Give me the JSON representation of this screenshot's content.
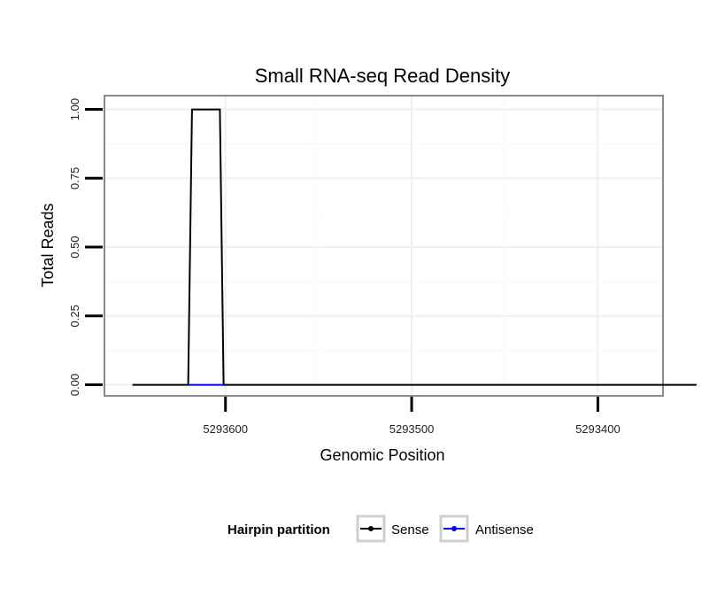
{
  "chart_data": {
    "type": "line",
    "title": "Small RNA-seq Read Density",
    "xlabel": "Genomic Position",
    "ylabel": "Total Reads",
    "x_reversed": true,
    "xlim": [
      5293665,
      5293365
    ],
    "ylim": [
      -0.04,
      1.05
    ],
    "x_ticks": [
      5293600,
      5293500,
      5293400
    ],
    "x_tick_labels": [
      "5293600",
      "5293500",
      "5293400"
    ],
    "y_ticks": [
      0,
      0.25,
      0.5,
      0.75,
      1
    ],
    "y_tick_labels": [
      "0.00",
      "0.25",
      "0.50",
      "0.75",
      "1.00"
    ],
    "grid": true,
    "series": [
      {
        "name": "Sense",
        "color": "#000000",
        "x": [
          5293650,
          5293620,
          5293618,
          5293603,
          5293601,
          5293347
        ],
        "y": [
          0,
          0,
          1,
          1,
          0,
          0
        ]
      },
      {
        "name": "Antisense",
        "color": "#0000ff",
        "x": [
          5293620,
          5293601
        ],
        "y": [
          0,
          0
        ]
      }
    ],
    "legend": {
      "title": "Hairpin partition",
      "position": "bottom",
      "entries": [
        "Sense",
        "Antisense"
      ]
    }
  }
}
